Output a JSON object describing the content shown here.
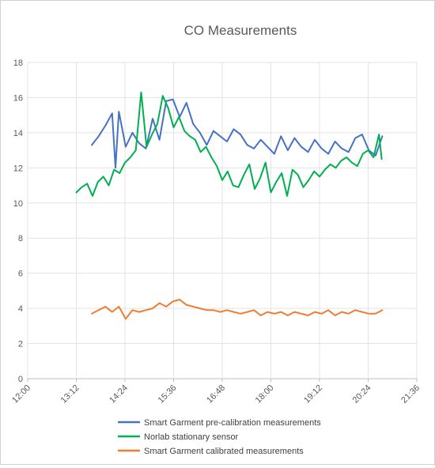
{
  "chart_data": {
    "type": "line",
    "title": "CO Measurements",
    "xlabel": "",
    "ylabel": "",
    "ylim": [
      0,
      18
    ],
    "yticks": [
      0,
      2,
      4,
      6,
      8,
      10,
      12,
      14,
      16,
      18
    ],
    "xlim": [
      "12:00",
      "21:36"
    ],
    "xticks": [
      "12:00",
      "13:12",
      "14:24",
      "15:36",
      "16:48",
      "18:00",
      "19:12",
      "20:24",
      "21:36"
    ],
    "grid": "vertical and horizontal",
    "legend_position": "bottom",
    "series": [
      {
        "name": "Smart Garment pre-calibration measurements",
        "color": "#4472C4",
        "x": [
          "13:35",
          "13:45",
          "13:55",
          "14:05",
          "14:10",
          "14:15",
          "14:25",
          "14:35",
          "14:45",
          "14:55",
          "15:05",
          "15:15",
          "15:25",
          "15:35",
          "15:45",
          "15:55",
          "16:05",
          "16:15",
          "16:25",
          "16:35",
          "16:45",
          "16:55",
          "17:05",
          "17:15",
          "17:25",
          "17:35",
          "17:45",
          "17:55",
          "18:05",
          "18:15",
          "18:25",
          "18:35",
          "18:45",
          "18:55",
          "19:05",
          "19:15",
          "19:25",
          "19:35",
          "19:45",
          "19:55",
          "20:05",
          "20:15",
          "20:25",
          "20:35",
          "20:45"
        ],
        "y": [
          13.3,
          13.8,
          14.4,
          15.1,
          12.0,
          15.2,
          13.2,
          14.0,
          13.4,
          13.1,
          14.8,
          13.6,
          15.8,
          15.9,
          14.9,
          15.7,
          14.5,
          14.0,
          13.3,
          14.1,
          13.8,
          13.5,
          14.2,
          13.9,
          13.3,
          13.1,
          13.6,
          13.2,
          12.8,
          13.8,
          13.0,
          13.7,
          13.2,
          12.9,
          13.6,
          13.1,
          12.8,
          13.5,
          13.1,
          12.9,
          13.7,
          13.9,
          13.0,
          12.7,
          13.8
        ]
      },
      {
        "name": "Norlab stationary sensor",
        "color": "#00B050",
        "x": [
          "13:12",
          "13:20",
          "13:28",
          "13:36",
          "13:44",
          "13:52",
          "14:00",
          "14:08",
          "14:16",
          "14:24",
          "14:32",
          "14:40",
          "14:48",
          "14:56",
          "15:04",
          "15:12",
          "15:20",
          "15:28",
          "15:36",
          "15:44",
          "15:52",
          "16:00",
          "16:08",
          "16:16",
          "16:24",
          "16:32",
          "16:40",
          "16:48",
          "16:56",
          "17:04",
          "17:12",
          "17:20",
          "17:28",
          "17:36",
          "17:44",
          "17:52",
          "18:00",
          "18:08",
          "18:16",
          "18:24",
          "18:32",
          "18:40",
          "18:48",
          "18:56",
          "19:04",
          "19:12",
          "19:20",
          "19:28",
          "19:36",
          "19:44",
          "19:52",
          "20:00",
          "20:08",
          "20:16",
          "20:24",
          "20:32",
          "20:40",
          "20:44"
        ],
        "y": [
          10.6,
          10.9,
          11.1,
          10.4,
          11.2,
          11.5,
          11.0,
          11.9,
          11.7,
          12.3,
          12.6,
          13.0,
          16.3,
          13.2,
          13.9,
          14.5,
          16.1,
          15.4,
          14.3,
          14.9,
          14.1,
          13.8,
          13.6,
          12.9,
          13.2,
          12.6,
          12.1,
          11.3,
          11.8,
          11.0,
          10.9,
          11.6,
          12.2,
          10.8,
          11.4,
          12.3,
          10.6,
          11.2,
          11.7,
          10.4,
          11.9,
          11.6,
          10.9,
          11.3,
          11.8,
          11.5,
          11.9,
          12.2,
          12.0,
          12.4,
          12.6,
          12.3,
          12.1,
          12.8,
          13.0,
          12.6,
          13.9,
          12.5
        ]
      },
      {
        "name": "Smart Garment calibrated measurements",
        "color": "#ED7D31",
        "x": [
          "13:35",
          "13:45",
          "13:55",
          "14:05",
          "14:15",
          "14:25",
          "14:35",
          "14:45",
          "14:55",
          "15:05",
          "15:15",
          "15:25",
          "15:35",
          "15:45",
          "15:55",
          "16:05",
          "16:15",
          "16:25",
          "16:35",
          "16:45",
          "16:55",
          "17:05",
          "17:15",
          "17:25",
          "17:35",
          "17:45",
          "17:55",
          "18:05",
          "18:15",
          "18:25",
          "18:35",
          "18:45",
          "18:55",
          "19:05",
          "19:15",
          "19:25",
          "19:35",
          "19:45",
          "19:55",
          "20:05",
          "20:15",
          "20:25",
          "20:35",
          "20:45"
        ],
        "y": [
          3.7,
          3.9,
          4.1,
          3.8,
          4.1,
          3.4,
          3.9,
          3.8,
          3.9,
          4.0,
          4.3,
          4.1,
          4.4,
          4.5,
          4.2,
          4.1,
          4.0,
          3.9,
          3.9,
          3.8,
          3.9,
          3.8,
          3.7,
          3.8,
          3.9,
          3.6,
          3.8,
          3.7,
          3.8,
          3.6,
          3.8,
          3.7,
          3.6,
          3.8,
          3.7,
          3.9,
          3.6,
          3.8,
          3.7,
          3.9,
          3.8,
          3.7,
          3.7,
          3.9
        ]
      }
    ]
  }
}
